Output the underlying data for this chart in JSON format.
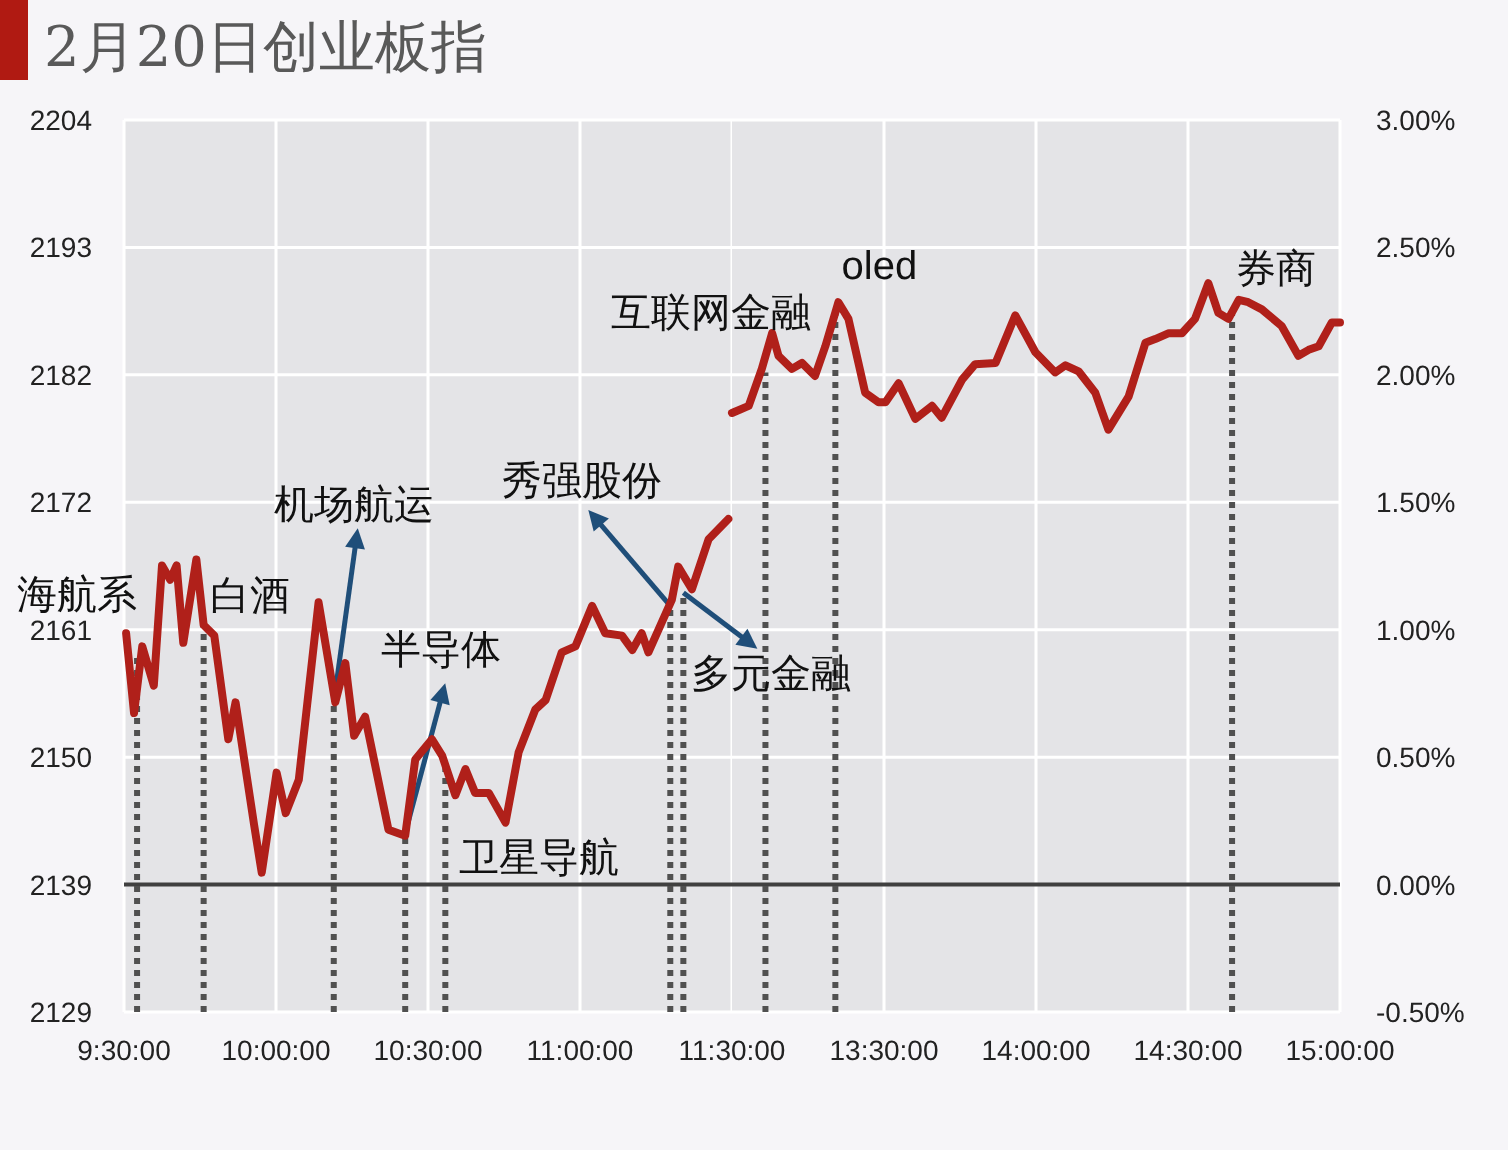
{
  "chart_data": [
    {
      "type": "line",
      "title": "2月20日创业板指",
      "x": [
        9.507,
        9.533,
        9.56,
        9.598,
        9.625,
        9.652,
        9.673,
        9.695,
        9.738,
        9.762,
        9.797,
        9.843,
        9.867,
        9.928,
        9.953,
        10.002,
        10.032,
        10.075,
        10.14,
        10.195,
        10.228,
        10.257,
        10.293,
        10.37,
        10.425,
        10.458,
        10.513,
        10.547,
        10.59,
        10.623,
        10.655,
        10.7,
        10.755,
        10.798,
        10.853,
        10.887,
        10.94,
        10.985,
        11.04,
        11.083,
        11.138,
        11.172,
        11.203,
        11.225,
        11.302,
        11.323,
        11.368,
        11.423,
        11.488
      ],
      "series": [
        {
          "color": "#b0201a",
          "values": [
            2160.6,
            2153.9,
            2159.5,
            2156.2,
            2166.3,
            2165.1,
            2166.3,
            2159.8,
            2166.8,
            2161.3,
            2160.4,
            2151.7,
            2154.8,
            2144.5,
            2140.5,
            2148.9,
            2145.5,
            2148.3,
            2163.2,
            2154.8,
            2158.1,
            2152.0,
            2153.6,
            2144.1,
            2143.6,
            2150.0,
            2151.7,
            2150.3,
            2147.0,
            2149.2,
            2147.2,
            2147.2,
            2144.7,
            2150.6,
            2154.2,
            2155.0,
            2159.0,
            2159.5,
            2162.9,
            2160.6,
            2160.4,
            2159.2,
            2160.6,
            2159.0,
            2163.4,
            2166.2,
            2164.3,
            2168.5,
            2170.2
          ]
        }
      ],
      "xlim": [
        9.5,
        11.5
      ],
      "xticks": [
        {
          "value": 9.5,
          "label": "9:30:00"
        },
        {
          "value": 10,
          "label": "10:00:00"
        },
        {
          "value": 10.5,
          "label": "10:30:00"
        },
        {
          "value": 11,
          "label": "11:00:00"
        },
        {
          "value": 11.5,
          "label": "11:30:00"
        }
      ],
      "ylim": [
        2128.8,
        2203.7
      ],
      "yticks": [
        {
          "value": 2128.8,
          "label": "2129"
        },
        {
          "value": 2139.5,
          "label": "2139"
        },
        {
          "value": 2150.2,
          "label": "2150"
        },
        {
          "value": 2160.9,
          "label": "2161"
        },
        {
          "value": 2171.6,
          "label": "2172"
        },
        {
          "value": 2182.3,
          "label": "2182"
        },
        {
          "value": 2193.0,
          "label": "2193"
        },
        {
          "value": 2203.7,
          "label": "2204"
        }
      ],
      "grid": true,
      "ref_lines": [
        {
          "axis": "y",
          "value": 2139.5,
          "color": "#404040"
        }
      ],
      "annotations": [
        {
          "text": "海航系",
          "x": 9.543,
          "y": 2158.9
        },
        {
          "text": "白酒",
          "x": 9.762,
          "y": 2161.3
        },
        {
          "text": "机场航运",
          "x": 10.19,
          "y": 2154.8
        },
        {
          "text": "半导体",
          "x": 10.425,
          "y": 2143.8
        },
        {
          "text": "卫星导航",
          "x": 10.557,
          "y": 2149.7
        },
        {
          "text": "秀强股份",
          "x": 11.297,
          "y": 2162.9
        },
        {
          "text": "多元金融",
          "x": 11.34,
          "y": 2164.0
        }
      ]
    },
    {
      "type": "line",
      "x": [
        13.0,
        13.055,
        13.098,
        13.132,
        13.153,
        13.197,
        13.23,
        13.273,
        13.307,
        13.35,
        13.383,
        13.438,
        13.482,
        13.505,
        13.548,
        13.603,
        13.658,
        13.69,
        13.757,
        13.8,
        13.867,
        13.932,
        13.998,
        14.063,
        14.097,
        14.14,
        14.195,
        14.238,
        14.305,
        14.36,
        14.392,
        14.437,
        14.48,
        14.523,
        14.567,
        14.6,
        14.633,
        14.667,
        14.698,
        14.743,
        14.808,
        14.863,
        14.897,
        14.93,
        14.973,
        15.0
      ],
      "series": [
        {
          "color": "#b0201a",
          "values": [
            2179.1,
            2179.7,
            2182.8,
            2185.8,
            2183.9,
            2182.8,
            2183.3,
            2182.2,
            2184.7,
            2188.4,
            2187.0,
            2180.8,
            2180.0,
            2180.0,
            2181.6,
            2178.6,
            2179.7,
            2178.7,
            2181.9,
            2183.2,
            2183.3,
            2187.3,
            2184.2,
            2182.5,
            2183.1,
            2182.6,
            2180.8,
            2177.7,
            2180.5,
            2185.0,
            2185.3,
            2185.8,
            2185.8,
            2187.0,
            2190.0,
            2187.5,
            2187.0,
            2188.6,
            2188.4,
            2187.8,
            2186.4,
            2183.9,
            2184.4,
            2184.7,
            2186.7,
            2186.7
          ]
        }
      ],
      "xlim": [
        13,
        15
      ],
      "xticks": [
        {
          "value": 13.5,
          "label": "13:30:00"
        },
        {
          "value": 14,
          "label": "14:00:00"
        },
        {
          "value": 14.5,
          "label": "14:30:00"
        },
        {
          "value": 15,
          "label": "15:00:00"
        }
      ],
      "ylim": [
        2128.8,
        2203.7
      ],
      "y2lim": [
        -0.5,
        3.0
      ],
      "y2ticks": [
        {
          "value": -0.5,
          "label": "-0.50%"
        },
        {
          "value": 0,
          "label": "0.00%"
        },
        {
          "value": 0.5,
          "label": "0.50%"
        },
        {
          "value": 1.0,
          "label": "1.00%"
        },
        {
          "value": 1.5,
          "label": "1.50%"
        },
        {
          "value": 2.0,
          "label": "2.00%"
        },
        {
          "value": 2.5,
          "label": "2.50%"
        },
        {
          "value": 3.0,
          "label": "3.00%"
        }
      ],
      "grid": true,
      "ref_lines": [
        {
          "axis": "y2",
          "value": 0,
          "color": "#404040"
        }
      ],
      "annotations": [
        {
          "text": "互联网金融",
          "x": 13.11,
          "y": 2182.5
        },
        {
          "text": "oled",
          "x": 13.34,
          "y": 2188.2
        },
        {
          "text": "券商",
          "x": 14.645,
          "y": 2187.6
        }
      ]
    }
  ]
}
